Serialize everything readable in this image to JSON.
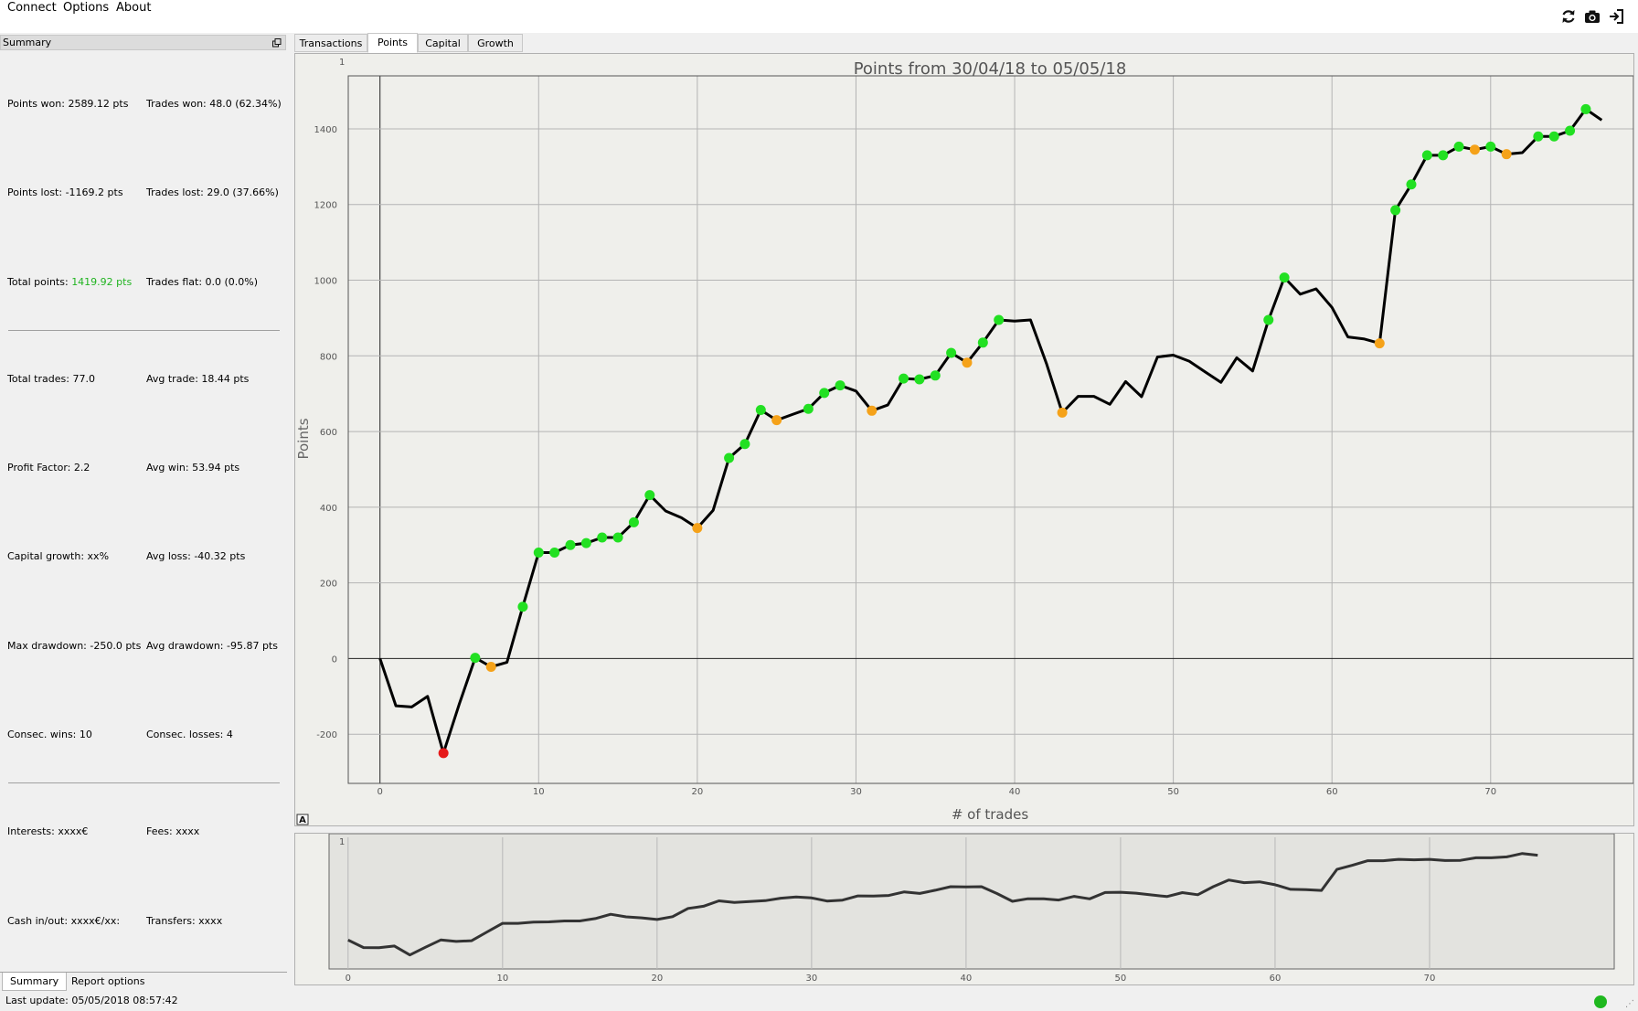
{
  "menu": {
    "items": [
      "Connect",
      "Options",
      "About"
    ]
  },
  "toolbar": {
    "icons": [
      "refresh-icon",
      "camera-icon",
      "exit-icon"
    ]
  },
  "summary": {
    "header": "Summary",
    "stats": {
      "points_won": "Points won: 2589.12 pts",
      "trades_won": "Trades won: 48.0 (62.34%)",
      "points_lost": "Points lost: -1169.2 pts",
      "trades_lost": "Trades lost: 29.0 (37.66%)",
      "total_points_label": "Total points: ",
      "total_points_value": "1419.92 pts",
      "trades_flat": "Trades flat: 0.0 (0.0%)",
      "total_trades": "Total trades: 77.0",
      "avg_trade": "Avg trade: 18.44 pts",
      "profit_factor": "Profit Factor: 2.2",
      "avg_win": "Avg win: 53.94 pts",
      "capital_growth": "Capital growth: xx%",
      "avg_loss": "Avg loss: -40.32 pts",
      "max_drawdown": "Max drawdown: -250.0 pts",
      "avg_drawdown": "Avg drawdown: -95.87 pts",
      "consec_wins": "Consec. wins: 10",
      "consec_losses": "Consec. losses: 4",
      "interests": "Interests: xxxx€",
      "fees": "Fees: xxxx",
      "cash_inout": "Cash in/out: xxxx€/xx:",
      "transfers": "Transfers: xxxx"
    },
    "tabs": [
      "Summary",
      "Report options"
    ],
    "active_tab": "Summary"
  },
  "status": {
    "last_update": "Last update: 05/05/2018 08:57:42",
    "connection_color": "#1fb81f"
  },
  "chart_tabs": {
    "items": [
      "Transactions",
      "Points",
      "Capital",
      "Growth"
    ],
    "active": "Points"
  },
  "main_chart": {
    "corner_label": "1",
    "autoscale_label": "A"
  },
  "overview": {
    "corner_label": "1"
  },
  "chart_data": [
    {
      "type": "line",
      "title": "Points from 30/04/18 to 05/05/18",
      "xlabel": "# of trades",
      "ylabel": "Points",
      "xlim": [
        -2,
        79
      ],
      "ylim": [
        -330,
        1540
      ],
      "xticks": [
        0,
        10,
        20,
        30,
        40,
        50,
        60,
        70
      ],
      "yticks": [
        -200,
        0,
        200,
        400,
        600,
        800,
        1000,
        1200,
        1400
      ],
      "grid": true,
      "series": [
        {
          "x": [
            0,
            1,
            2,
            3,
            4,
            5,
            6,
            7,
            8,
            9,
            10,
            11,
            12,
            13,
            14,
            15,
            16,
            17,
            18,
            19,
            20,
            21,
            22,
            23,
            24,
            25,
            26,
            27,
            28,
            29,
            30,
            31,
            32,
            33,
            34,
            35,
            36,
            37,
            38,
            39,
            40,
            41,
            42,
            43,
            44,
            45,
            46,
            47,
            48,
            49,
            50,
            51,
            52,
            53,
            54,
            55,
            56,
            57,
            58,
            59,
            60,
            61,
            62,
            63,
            64,
            65,
            66,
            67,
            68,
            69,
            70,
            71,
            72,
            73,
            74,
            75,
            76,
            77
          ],
          "y": [
            0,
            -125,
            -128,
            -100,
            -250,
            -120,
            2,
            -22,
            -10,
            137,
            280,
            280,
            300,
            305,
            320,
            320,
            360,
            432,
            390,
            372,
            345,
            392,
            530,
            567,
            657,
            630,
            645,
            660,
            702,
            722,
            707,
            655,
            670,
            740,
            738,
            748,
            808,
            782,
            835,
            895,
            892,
            895,
            780,
            650,
            693,
            693,
            672,
            732,
            692,
            797,
            802,
            786,
            758,
            730,
            795,
            760,
            895,
            1007,
            963,
            977,
            928,
            850,
            845,
            833,
            1185,
            1253,
            1330,
            1330,
            1353,
            1345,
            1353,
            1333,
            1337,
            1380,
            1380,
            1395,
            1452,
            1423
          ]
        }
      ],
      "markers": [
        {
          "x": 4,
          "y": -250,
          "color": "#e61a1a"
        },
        {
          "x": 6,
          "y": 2,
          "color": "#22e022"
        },
        {
          "x": 7,
          "y": -22,
          "color": "#f5a219"
        },
        {
          "x": 9,
          "y": 137,
          "color": "#22e022"
        },
        {
          "x": 10,
          "y": 280,
          "color": "#22e022"
        },
        {
          "x": 11,
          "y": 280,
          "color": "#22e022"
        },
        {
          "x": 12,
          "y": 300,
          "color": "#22e022"
        },
        {
          "x": 13,
          "y": 305,
          "color": "#22e022"
        },
        {
          "x": 14,
          "y": 320,
          "color": "#22e022"
        },
        {
          "x": 15,
          "y": 320,
          "color": "#22e022"
        },
        {
          "x": 16,
          "y": 360,
          "color": "#22e022"
        },
        {
          "x": 17,
          "y": 432,
          "color": "#22e022"
        },
        {
          "x": 20,
          "y": 345,
          "color": "#f5a219"
        },
        {
          "x": 22,
          "y": 530,
          "color": "#22e022"
        },
        {
          "x": 23,
          "y": 567,
          "color": "#22e022"
        },
        {
          "x": 24,
          "y": 657,
          "color": "#22e022"
        },
        {
          "x": 25,
          "y": 630,
          "color": "#f5a219"
        },
        {
          "x": 27,
          "y": 660,
          "color": "#22e022"
        },
        {
          "x": 28,
          "y": 702,
          "color": "#22e022"
        },
        {
          "x": 29,
          "y": 722,
          "color": "#22e022"
        },
        {
          "x": 31,
          "y": 655,
          "color": "#f5a219"
        },
        {
          "x": 33,
          "y": 740,
          "color": "#22e022"
        },
        {
          "x": 34,
          "y": 738,
          "color": "#22e022"
        },
        {
          "x": 35,
          "y": 748,
          "color": "#22e022"
        },
        {
          "x": 36,
          "y": 808,
          "color": "#22e022"
        },
        {
          "x": 37,
          "y": 782,
          "color": "#f5a219"
        },
        {
          "x": 38,
          "y": 835,
          "color": "#22e022"
        },
        {
          "x": 39,
          "y": 895,
          "color": "#22e022"
        },
        {
          "x": 43,
          "y": 650,
          "color": "#f5a219"
        },
        {
          "x": 56,
          "y": 895,
          "color": "#22e022"
        },
        {
          "x": 57,
          "y": 1007,
          "color": "#22e022"
        },
        {
          "x": 63,
          "y": 833,
          "color": "#f5a219"
        },
        {
          "x": 64,
          "y": 1185,
          "color": "#22e022"
        },
        {
          "x": 65,
          "y": 1253,
          "color": "#22e022"
        },
        {
          "x": 66,
          "y": 1330,
          "color": "#22e022"
        },
        {
          "x": 67,
          "y": 1330,
          "color": "#22e022"
        },
        {
          "x": 68,
          "y": 1353,
          "color": "#22e022"
        },
        {
          "x": 69,
          "y": 1345,
          "color": "#f5a219"
        },
        {
          "x": 70,
          "y": 1353,
          "color": "#22e022"
        },
        {
          "x": 71,
          "y": 1333,
          "color": "#f5a219"
        },
        {
          "x": 73,
          "y": 1380,
          "color": "#22e022"
        },
        {
          "x": 74,
          "y": 1380,
          "color": "#22e022"
        },
        {
          "x": 75,
          "y": 1395,
          "color": "#22e022"
        },
        {
          "x": 76,
          "y": 1452,
          "color": "#22e022"
        }
      ]
    },
    {
      "type": "line",
      "xlim": [
        -2,
        80
      ],
      "ylim": [
        -300,
        1600
      ],
      "xticks": [
        0,
        10,
        20,
        30,
        40,
        50,
        60,
        70
      ],
      "grid": true,
      "series": [
        {
          "x": [
            0,
            1,
            2,
            3,
            4,
            5,
            6,
            7,
            8,
            9,
            10,
            11,
            12,
            13,
            14,
            15,
            16,
            17,
            18,
            19,
            20,
            21,
            22,
            23,
            24,
            25,
            26,
            27,
            28,
            29,
            30,
            31,
            32,
            33,
            34,
            35,
            36,
            37,
            38,
            39,
            40,
            41,
            42,
            43,
            44,
            45,
            46,
            47,
            48,
            49,
            50,
            51,
            52,
            53,
            54,
            55,
            56,
            57,
            58,
            59,
            60,
            61,
            62,
            63,
            64,
            65,
            66,
            67,
            68,
            69,
            70,
            71,
            72,
            73,
            74,
            75,
            76,
            77
          ],
          "y": [
            0,
            -125,
            -128,
            -100,
            -250,
            -120,
            2,
            -22,
            -10,
            137,
            280,
            280,
            300,
            305,
            320,
            320,
            360,
            432,
            390,
            372,
            345,
            392,
            530,
            567,
            657,
            630,
            645,
            660,
            702,
            722,
            707,
            655,
            670,
            740,
            738,
            748,
            808,
            782,
            835,
            895,
            892,
            895,
            780,
            650,
            693,
            693,
            672,
            732,
            692,
            797,
            802,
            786,
            758,
            730,
            795,
            760,
            895,
            1007,
            963,
            977,
            928,
            850,
            845,
            833,
            1185,
            1253,
            1330,
            1330,
            1353,
            1345,
            1353,
            1333,
            1337,
            1380,
            1380,
            1395,
            1452,
            1423
          ]
        }
      ]
    }
  ]
}
